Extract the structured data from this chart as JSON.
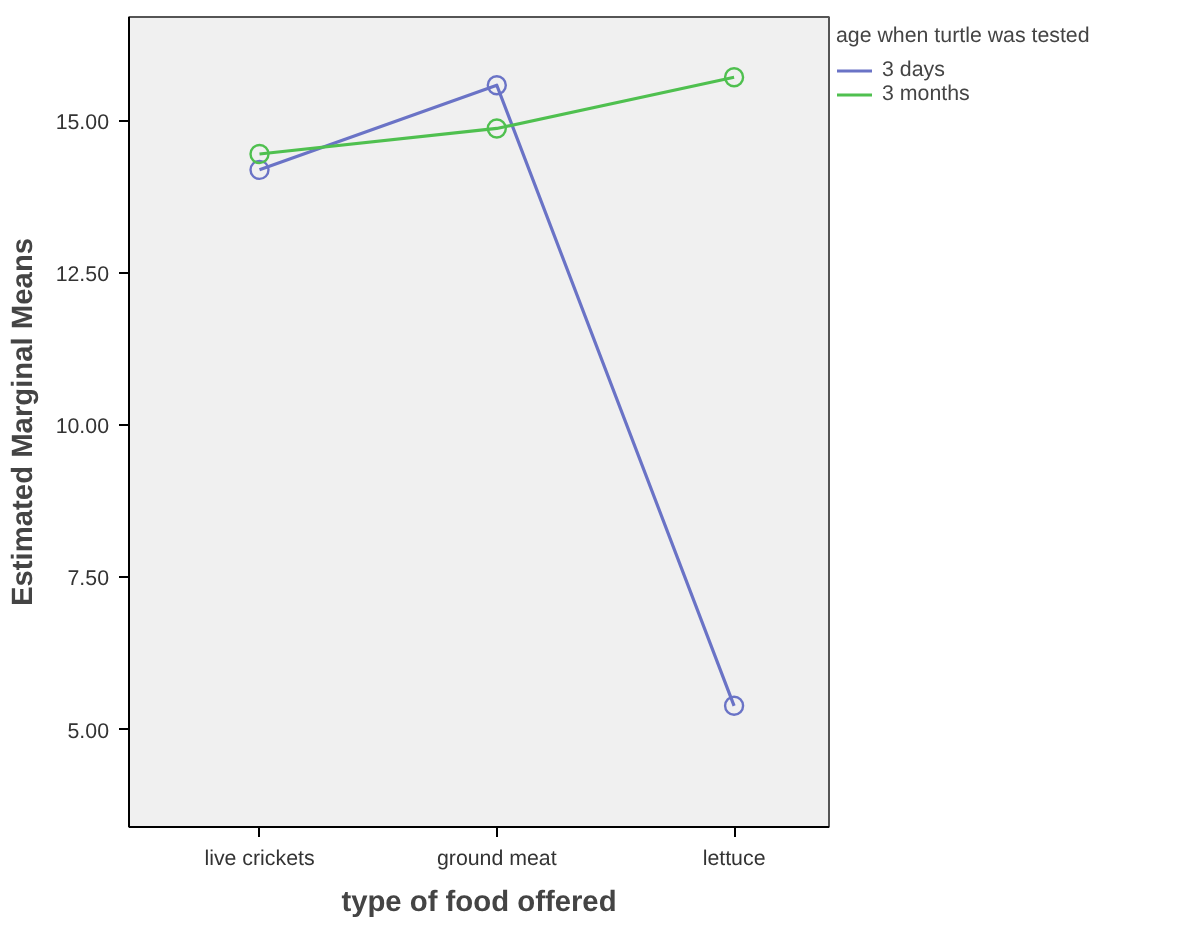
{
  "chart_data": {
    "type": "line",
    "xlabel": "type of food offered",
    "ylabel": "Estimated Marginal Means",
    "legend_title": "age when turtle was tested",
    "legend": "right",
    "marker": "circle",
    "grid": false,
    "categories": [
      "live crickets",
      "ground meat",
      "lettuce"
    ],
    "ylim": [
      3.4,
      16.7
    ],
    "yticks": [
      {
        "value": 5,
        "label": "5.00"
      },
      {
        "value": 7.5,
        "label": "7.50"
      },
      {
        "value": 10,
        "label": "10.00"
      },
      {
        "value": 12.5,
        "label": "12.50"
      },
      {
        "value": 15,
        "label": "15.00"
      }
    ],
    "series": [
      {
        "name": "3 days",
        "color": "#6a73c6",
        "values": [
          14.19,
          15.58,
          5.39
        ]
      },
      {
        "name": "3 months",
        "color": "#4fc04f",
        "values": [
          14.45,
          14.87,
          15.71
        ]
      }
    ]
  }
}
